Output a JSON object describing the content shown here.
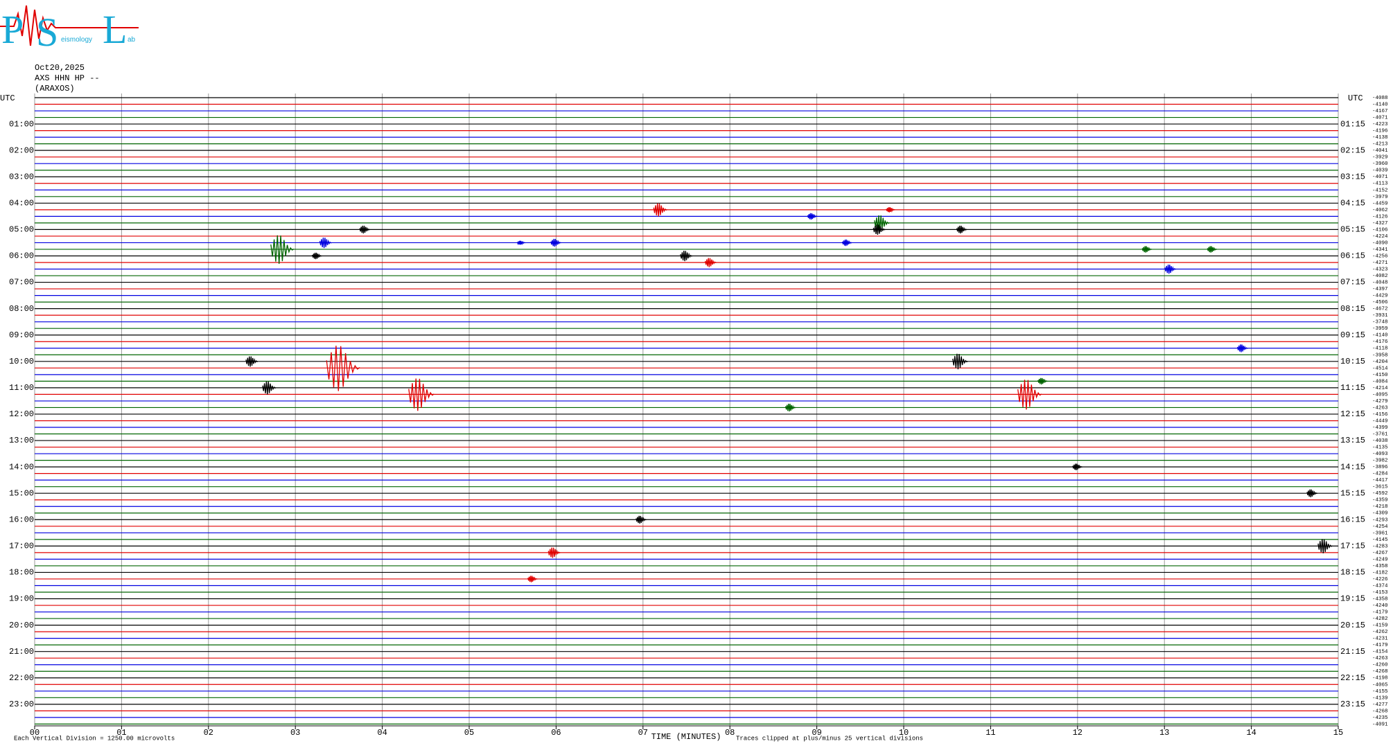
{
  "logo": {
    "big": [
      "P",
      "S",
      "L"
    ],
    "small": [
      "eismology",
      "ab"
    ]
  },
  "chart_data": {
    "type": "helicorder",
    "date": "Oct20,2025",
    "station": "AXS HHN HP --",
    "network": "(ARAXOS)",
    "left_axis_title": "UTC",
    "right_axis_title": "UTC",
    "left_labels": [
      "01:00",
      "02:00",
      "03:00",
      "04:00",
      "05:00",
      "06:00",
      "07:00",
      "08:00",
      "09:00",
      "10:00",
      "11:00",
      "12:00",
      "13:00",
      "14:00",
      "15:00",
      "16:00",
      "17:00",
      "18:00",
      "19:00",
      "20:00",
      "21:00",
      "22:00",
      "23:00"
    ],
    "right_labels": [
      "01:15",
      "02:15",
      "03:15",
      "04:15",
      "05:15",
      "06:15",
      "07:15",
      "08:15",
      "09:15",
      "10:15",
      "11:15",
      "12:15",
      "13:15",
      "14:15",
      "15:15",
      "16:15",
      "17:15",
      "18:15",
      "19:15",
      "20:15",
      "21:15",
      "22:15",
      "23:15"
    ],
    "offsets": [
      -4088,
      -4140,
      -4167,
      -4071,
      -4223,
      -4196,
      -4138,
      -4213,
      -4041,
      -3929,
      -3960,
      -4039,
      -4071,
      -4113,
      -4152,
      -3979,
      -4459,
      -4062,
      -4126,
      -4327,
      -4106,
      -4224,
      -4090,
      -4341,
      -4256,
      -4271,
      -4323,
      -4082,
      -4048,
      -4397,
      -4429,
      -4506,
      -4672,
      -3931,
      -3748,
      -3959,
      -4140,
      -4176,
      -4118,
      -3958,
      -4204,
      -4514,
      -4150,
      -4084,
      -4214,
      -4095,
      -4279,
      -4263,
      -4156,
      -4449,
      -4399,
      -3761,
      -4038,
      -4135,
      -4093,
      -3982,
      -3896,
      -4284,
      -4417,
      -3615,
      -4592,
      -4359,
      -4218,
      -4309,
      -4293,
      -4254,
      -3961,
      -4145,
      -4283,
      -4267,
      -4249,
      -4358,
      -4182,
      -4226,
      -4374,
      -4153,
      -4358,
      -4240,
      -4179,
      -4282,
      -4159,
      -4262,
      -4231,
      -4179,
      -4154,
      -4263,
      -4260,
      -4268,
      -4198,
      -4065,
      -4155,
      -4139,
      -4277,
      -4268,
      -4235,
      -4091
    ],
    "colors": [
      "#000000",
      "#e00000",
      "#0000e0",
      "#006400"
    ],
    "xlim": [
      0,
      15
    ],
    "xticks": [
      {
        "value": 0,
        "label": "00"
      },
      {
        "value": 1,
        "label": "01"
      },
      {
        "value": 2,
        "label": "02"
      },
      {
        "value": 3,
        "label": "03"
      },
      {
        "value": 4,
        "label": "04"
      },
      {
        "value": 5,
        "label": "05"
      },
      {
        "value": 6,
        "label": "06"
      },
      {
        "value": 7,
        "label": "07"
      },
      {
        "value": 8,
        "label": "08"
      },
      {
        "value": 9,
        "label": "09"
      },
      {
        "value": 10,
        "label": "10"
      },
      {
        "value": 11,
        "label": "11"
      },
      {
        "value": 12,
        "label": "12"
      },
      {
        "value": 13,
        "label": "13"
      },
      {
        "value": 14,
        "label": "14"
      },
      {
        "value": 15,
        "label": "15"
      }
    ],
    "grid": true,
    "xlabel": "TIME (MINUTES)",
    "scale_note": "Each Vertical Division = 1250.00 microvolts",
    "clip_note": "Traces clipped at plus/minus 25 vertical divisions",
    "events": [
      {
        "row": 17,
        "minute": 7.2,
        "amplitude": 1.0
      },
      {
        "row": 18,
        "minute": 8.95,
        "amplitude": 0.5
      },
      {
        "row": 17,
        "minute": 9.85,
        "amplitude": 0.4
      },
      {
        "row": 19,
        "minute": 9.75,
        "amplitude": 1.2
      },
      {
        "row": 20,
        "minute": 3.8,
        "amplitude": 0.6
      },
      {
        "row": 20,
        "minute": 9.72,
        "amplitude": 0.8
      },
      {
        "row": 20,
        "minute": 10.67,
        "amplitude": 0.6
      },
      {
        "row": 22,
        "minute": 3.35,
        "amplitude": 0.8
      },
      {
        "row": 22,
        "minute": 6.0,
        "amplitude": 0.6
      },
      {
        "row": 22,
        "minute": 9.35,
        "amplitude": 0.5
      },
      {
        "row": 22,
        "minute": 5.6,
        "amplitude": 0.3
      },
      {
        "row": 23,
        "minute": 2.85,
        "amplitude": 2.2
      },
      {
        "row": 23,
        "minute": 12.8,
        "amplitude": 0.5
      },
      {
        "row": 23,
        "minute": 13.55,
        "amplitude": 0.5
      },
      {
        "row": 24,
        "minute": 3.25,
        "amplitude": 0.5
      },
      {
        "row": 24,
        "minute": 7.5,
        "amplitude": 0.8
      },
      {
        "row": 25,
        "minute": 7.78,
        "amplitude": 0.7
      },
      {
        "row": 26,
        "minute": 13.07,
        "amplitude": 0.7
      },
      {
        "row": 38,
        "minute": 13.9,
        "amplitude": 0.6
      },
      {
        "row": 40,
        "minute": 2.5,
        "amplitude": 0.8
      },
      {
        "row": 40,
        "minute": 10.65,
        "amplitude": 1.2
      },
      {
        "row": 41,
        "minute": 3.55,
        "amplitude": 3.5
      },
      {
        "row": 43,
        "minute": 11.6,
        "amplitude": 0.5
      },
      {
        "row": 44,
        "minute": 2.7,
        "amplitude": 1.0
      },
      {
        "row": 45,
        "minute": 4.45,
        "amplitude": 2.5
      },
      {
        "row": 45,
        "minute": 11.45,
        "amplitude": 2.3
      },
      {
        "row": 47,
        "minute": 8.7,
        "amplitude": 0.6
      },
      {
        "row": 56,
        "minute": 12.0,
        "amplitude": 0.5
      },
      {
        "row": 60,
        "minute": 14.7,
        "amplitude": 0.6
      },
      {
        "row": 64,
        "minute": 6.98,
        "amplitude": 0.6
      },
      {
        "row": 68,
        "minute": 14.85,
        "amplitude": 1.1
      },
      {
        "row": 69,
        "minute": 5.98,
        "amplitude": 0.8
      },
      {
        "row": 73,
        "minute": 5.73,
        "amplitude": 0.5
      }
    ]
  }
}
